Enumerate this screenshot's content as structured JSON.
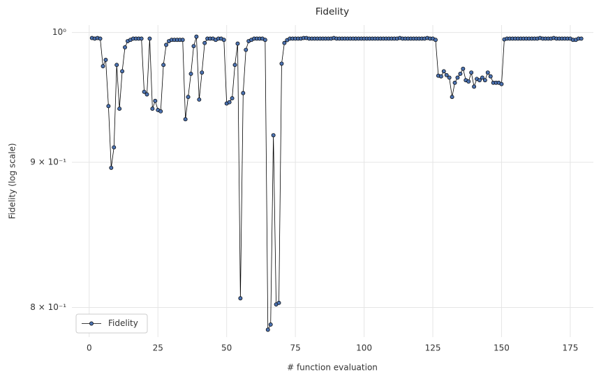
{
  "chart_data": {
    "type": "line",
    "title": "Fidelity",
    "x_label": "# function evaluation",
    "y_label": "Fidelity (log scale)",
    "log_y": true,
    "grid": true,
    "legend": "lower left",
    "x": [
      1,
      2,
      3,
      4,
      5,
      6,
      7,
      8,
      9,
      10,
      11,
      12,
      13,
      14,
      15,
      16,
      17,
      18,
      19,
      20,
      21,
      22,
      23,
      24,
      25,
      26,
      27,
      28,
      29,
      30,
      31,
      32,
      33,
      34,
      35,
      36,
      37,
      38,
      39,
      40,
      41,
      42,
      43,
      44,
      45,
      46,
      47,
      48,
      49,
      50,
      51,
      52,
      53,
      54,
      55,
      56,
      57,
      58,
      59,
      60,
      61,
      62,
      63,
      64,
      65,
      66,
      67,
      68,
      69,
      70,
      71,
      72,
      73,
      74,
      75,
      76,
      77,
      78,
      79,
      80,
      81,
      82,
      83,
      84,
      85,
      86,
      87,
      88,
      89,
      90,
      91,
      92,
      93,
      94,
      95,
      96,
      97,
      98,
      99,
      100,
      101,
      102,
      103,
      104,
      105,
      106,
      107,
      108,
      109,
      110,
      111,
      112,
      113,
      114,
      115,
      116,
      117,
      118,
      119,
      120,
      121,
      122,
      123,
      124,
      125,
      126,
      127,
      128,
      129,
      130,
      131,
      132,
      133,
      134,
      135,
      136,
      137,
      138,
      139,
      140,
      141,
      142,
      143,
      144,
      145,
      146,
      147,
      148,
      149,
      150,
      151,
      152,
      153,
      154,
      155,
      156,
      157,
      158,
      159,
      160,
      161,
      162,
      163,
      164,
      165,
      166,
      167,
      168,
      169,
      170,
      171,
      172,
      173,
      174,
      175,
      176,
      177,
      178,
      179
    ],
    "series": [
      {
        "name": "Fidelity",
        "color": "#4c72b0",
        "line_color": "#000000",
        "values": [
          0.9955,
          0.995,
          0.9955,
          0.995,
          0.973,
          0.978,
          0.942,
          0.896,
          0.911,
          0.974,
          0.94,
          0.969,
          0.988,
          0.993,
          0.994,
          0.995,
          0.995,
          0.995,
          0.995,
          0.953,
          0.951,
          0.995,
          0.94,
          0.946,
          0.939,
          0.938,
          0.974,
          0.99,
          0.993,
          0.994,
          0.994,
          0.994,
          0.994,
          0.994,
          0.932,
          0.949,
          0.967,
          0.989,
          0.9966,
          0.947,
          0.968,
          0.9915,
          0.995,
          0.995,
          0.995,
          0.994,
          0.995,
          0.995,
          0.994,
          0.944,
          0.945,
          0.948,
          0.974,
          0.991,
          0.806,
          0.952,
          0.986,
          0.993,
          0.994,
          0.995,
          0.995,
          0.995,
          0.995,
          0.994,
          0.7857,
          0.789,
          0.92,
          0.802,
          0.803,
          0.975,
          0.9915,
          0.9938,
          0.995,
          0.995,
          0.995,
          0.995,
          0.995,
          0.9955,
          0.9955,
          0.995,
          0.995,
          0.995,
          0.995,
          0.995,
          0.995,
          0.995,
          0.995,
          0.995,
          0.9955,
          0.995,
          0.995,
          0.995,
          0.995,
          0.995,
          0.995,
          0.995,
          0.995,
          0.995,
          0.995,
          0.995,
          0.995,
          0.995,
          0.995,
          0.995,
          0.995,
          0.995,
          0.995,
          0.995,
          0.995,
          0.995,
          0.995,
          0.995,
          0.9955,
          0.995,
          0.995,
          0.995,
          0.995,
          0.995,
          0.995,
          0.995,
          0.995,
          0.995,
          0.9955,
          0.995,
          0.995,
          0.994,
          0.9655,
          0.965,
          0.969,
          0.966,
          0.964,
          0.949,
          0.96,
          0.964,
          0.967,
          0.971,
          0.962,
          0.961,
          0.968,
          0.957,
          0.963,
          0.962,
          0.964,
          0.962,
          0.968,
          0.965,
          0.96,
          0.96,
          0.96,
          0.959,
          0.9944,
          0.995,
          0.995,
          0.995,
          0.995,
          0.995,
          0.995,
          0.995,
          0.995,
          0.995,
          0.995,
          0.995,
          0.995,
          0.9955,
          0.995,
          0.995,
          0.995,
          0.995,
          0.9955,
          0.995,
          0.995,
          0.995,
          0.995,
          0.995,
          0.995,
          0.994,
          0.994,
          0.995,
          0.995
        ]
      }
    ],
    "xlim": [
      -6.3,
      183.4
    ],
    "xticks": [
      0,
      25,
      50,
      75,
      100,
      125,
      150,
      175
    ],
    "ylim": [
      0.781,
      1.006
    ],
    "yticks": [
      {
        "value": 0.8,
        "label": "8 × 10⁻¹"
      },
      {
        "value": 0.9,
        "label": "9 × 10⁻¹"
      },
      {
        "value": 1,
        "label": "10⁰"
      }
    ]
  }
}
